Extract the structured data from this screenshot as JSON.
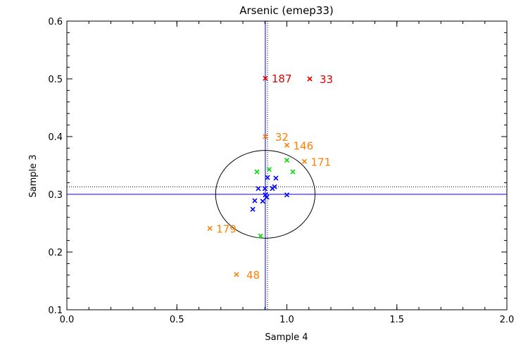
{
  "chart_data": {
    "type": "scatter",
    "title": "Arsenic (emep33)",
    "xlabel": "Sample 4",
    "ylabel": "Sample 3",
    "xlim": [
      0,
      2.0
    ],
    "ylim": [
      0.1,
      0.6
    ],
    "xticks": [
      "0.0",
      "0.5",
      "1.0",
      "1.5",
      "2.0"
    ],
    "yticks": [
      "0.1",
      "0.2",
      "0.3",
      "0.4",
      "0.5",
      "0.6"
    ],
    "grid": false,
    "reference_lines": {
      "vertical_solid": 0.902,
      "vertical_dotted": 0.912,
      "horizontal_solid": 0.3,
      "horizontal_dotted": 0.313
    },
    "ellipse": {
      "cx": 0.902,
      "cy": 0.3,
      "rx": 0.226,
      "ry": 0.076
    },
    "series": [
      {
        "name": "red",
        "color": "#e00000",
        "points": [
          {
            "x": 0.902,
            "y": 0.501,
            "label": "187"
          },
          {
            "x": 1.104,
            "y": 0.5,
            "label": "33"
          }
        ]
      },
      {
        "name": "orange",
        "color": "#ff7f00",
        "points": [
          {
            "x": 0.902,
            "y": 0.4,
            "label": "32"
          },
          {
            "x": 1.0,
            "y": 0.385,
            "label": "146"
          },
          {
            "x": 1.08,
            "y": 0.357,
            "label": "171"
          },
          {
            "x": 0.65,
            "y": 0.241,
            "label": "179"
          },
          {
            "x": 0.771,
            "y": 0.161,
            "label": "48"
          }
        ]
      },
      {
        "name": "green",
        "color": "#00dd00",
        "points": [
          {
            "x": 0.864,
            "y": 0.339
          },
          {
            "x": 0.92,
            "y": 0.343
          },
          {
            "x": 1.0,
            "y": 0.359
          },
          {
            "x": 1.027,
            "y": 0.339
          },
          {
            "x": 0.88,
            "y": 0.228
          }
        ]
      },
      {
        "name": "blue",
        "color": "#0000ff",
        "points": [
          {
            "x": 0.912,
            "y": 0.329
          },
          {
            "x": 0.95,
            "y": 0.328
          },
          {
            "x": 0.87,
            "y": 0.31
          },
          {
            "x": 0.9,
            "y": 0.31
          },
          {
            "x": 0.934,
            "y": 0.31
          },
          {
            "x": 0.944,
            "y": 0.313
          },
          {
            "x": 0.902,
            "y": 0.299
          },
          {
            "x": 0.909,
            "y": 0.295
          },
          {
            "x": 1.0,
            "y": 0.299
          },
          {
            "x": 0.854,
            "y": 0.289
          },
          {
            "x": 0.89,
            "y": 0.288
          },
          {
            "x": 0.845,
            "y": 0.274
          }
        ]
      }
    ]
  }
}
